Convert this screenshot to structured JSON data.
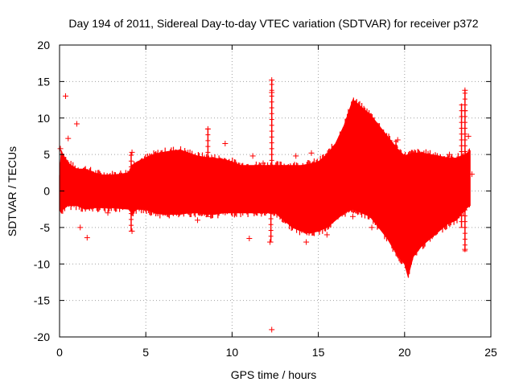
{
  "chart_data": {
    "type": "scatter",
    "title": "Day 194 of 2011, Sidereal Day-to-day VTEC variation (SDTVAR) for receiver p372",
    "xlabel": "GPS time / hours",
    "ylabel": "SDTVAR / TECUs",
    "xlim": [
      0,
      25
    ],
    "ylim": [
      -20,
      20
    ],
    "x_ticks": [
      0,
      5,
      10,
      15,
      20,
      25
    ],
    "y_ticks": [
      -20,
      -15,
      -10,
      -5,
      0,
      5,
      10,
      15,
      20
    ],
    "grid": true,
    "series_color": "#ff0000",
    "marker": "plus",
    "envelope": {
      "x": [
        0.0,
        0.1,
        0.2,
        0.5,
        1.0,
        1.5,
        2.0,
        2.5,
        3.0,
        3.5,
        4.0,
        4.2,
        4.5,
        5.0,
        5.5,
        6.0,
        6.5,
        7.0,
        7.5,
        8.0,
        8.5,
        9.0,
        9.5,
        10.0,
        10.5,
        11.0,
        11.5,
        12.0,
        12.5,
        13.0,
        13.5,
        14.0,
        14.5,
        15.0,
        15.5,
        16.0,
        16.5,
        17.0,
        17.5,
        18.0,
        18.5,
        19.0,
        19.5,
        20.0,
        20.2,
        20.5,
        21.0,
        21.5,
        22.0,
        22.5,
        23.0,
        23.5,
        23.8
      ],
      "upper": [
        2.0,
        5.5,
        5.0,
        3.8,
        3.0,
        3.0,
        2.5,
        2.2,
        2.2,
        2.3,
        2.5,
        3.5,
        4.0,
        4.5,
        5.0,
        5.3,
        5.5,
        5.6,
        5.2,
        4.8,
        4.6,
        4.5,
        4.3,
        4.0,
        3.5,
        3.5,
        3.5,
        3.5,
        3.5,
        3.5,
        3.5,
        3.5,
        3.7,
        4.0,
        5.0,
        6.5,
        9.0,
        12.5,
        11.5,
        10.5,
        9.0,
        7.5,
        6.0,
        4.8,
        5.0,
        5.2,
        5.2,
        5.0,
        4.8,
        4.5,
        4.5,
        5.0,
        5.5
      ],
      "lower": [
        -2.5,
        -3.0,
        -2.5,
        -2.0,
        -2.0,
        -2.5,
        -2.3,
        -2.3,
        -2.3,
        -2.4,
        -2.5,
        -3.0,
        -2.5,
        -2.5,
        -3.0,
        -3.2,
        -3.2,
        -3.2,
        -3.0,
        -3.0,
        -3.2,
        -3.2,
        -3.0,
        -3.0,
        -3.0,
        -3.0,
        -3.0,
        -3.0,
        -3.0,
        -4.0,
        -5.0,
        -5.5,
        -5.8,
        -5.5,
        -5.0,
        -4.0,
        -3.0,
        -2.5,
        -3.0,
        -3.5,
        -5.0,
        -6.5,
        -8.5,
        -10.0,
        -11.7,
        -9.0,
        -7.5,
        -6.5,
        -5.5,
        -4.5,
        -4.0,
        -2.5,
        -2.0
      ]
    },
    "outlier_points": [
      {
        "x": 0.35,
        "y": 13.0
      },
      {
        "x": 0.5,
        "y": 7.2
      },
      {
        "x": 1.0,
        "y": 9.2
      },
      {
        "x": 1.6,
        "y": -6.4
      },
      {
        "x": 0.05,
        "y": 5.8
      },
      {
        "x": 1.2,
        "y": -5.0
      },
      {
        "x": 4.2,
        "y": 5.3
      },
      {
        "x": 4.2,
        "y": -5.5
      },
      {
        "x": 8.6,
        "y": 8.5
      },
      {
        "x": 9.6,
        "y": 6.5
      },
      {
        "x": 12.2,
        "y": -7.0
      },
      {
        "x": 12.3,
        "y": 15.2
      },
      {
        "x": 12.3,
        "y": 13.5
      },
      {
        "x": 12.3,
        "y": -19.0
      },
      {
        "x": 11.2,
        "y": 4.8
      },
      {
        "x": 11.0,
        "y": -6.5
      },
      {
        "x": 11.8,
        "y": 3.8
      },
      {
        "x": 13.7,
        "y": 4.8
      },
      {
        "x": 14.6,
        "y": 5.2
      },
      {
        "x": 14.3,
        "y": -7.0
      },
      {
        "x": 15.5,
        "y": -6.0
      },
      {
        "x": 15.6,
        "y": 5.0
      },
      {
        "x": 16.2,
        "y": 6.0
      },
      {
        "x": 17.0,
        "y": -3.5
      },
      {
        "x": 18.1,
        "y": -5.0
      },
      {
        "x": 19.5,
        "y": -6.0
      },
      {
        "x": 19.6,
        "y": 7.0
      },
      {
        "x": 22.6,
        "y": 5.0
      },
      {
        "x": 23.5,
        "y": 13.8
      },
      {
        "x": 23.5,
        "y": 11.0
      },
      {
        "x": 23.5,
        "y": -8.0
      },
      {
        "x": 23.7,
        "y": 7.5
      },
      {
        "x": 23.9,
        "y": 2.3
      },
      {
        "x": 21.0,
        "y": 5.0
      },
      {
        "x": 8.0,
        "y": -4.0
      },
      {
        "x": 2.8,
        "y": -3.0
      }
    ],
    "spikes": [
      {
        "x": 12.3,
        "low": -3.0,
        "high": 15.3
      },
      {
        "x": 12.25,
        "low": -7.0,
        "high": 3.5
      },
      {
        "x": 8.6,
        "low": -3.5,
        "high": 8.5
      },
      {
        "x": 23.5,
        "low": -8.2,
        "high": 13.9
      },
      {
        "x": 23.3,
        "low": -5.0,
        "high": 12.0
      },
      {
        "x": 4.15,
        "low": -5.5,
        "high": 5.3
      },
      {
        "x": 19.5,
        "low": -6.0,
        "high": 7.0
      },
      {
        "x": 15.0,
        "low": -5.5,
        "high": 4.0
      }
    ]
  }
}
